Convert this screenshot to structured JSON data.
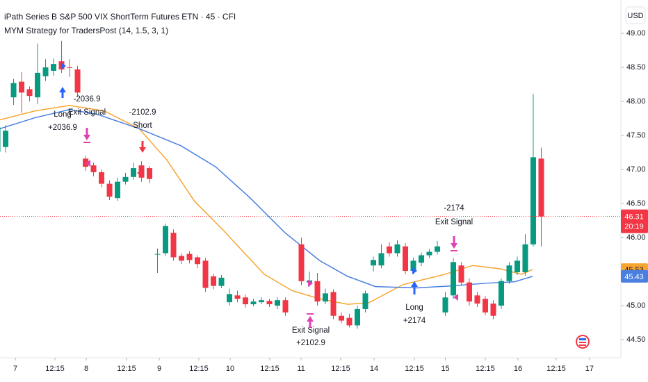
{
  "chart_data": {
    "type": "candlestick",
    "title": "iPath Series B S&P 500 VIX ShortTerm Futures ETN · 45 · CFI",
    "subtitle": "MYM Strategy for TradersPost (14, 1.5, 3, 1)",
    "currency": "USD",
    "countdown": "20:19",
    "up_color": "#089981",
    "down_color": "#f23645",
    "x": [
      -1,
      0,
      1,
      2,
      3,
      4,
      5,
      6,
      7,
      8,
      9,
      10,
      11,
      12,
      13,
      14,
      15,
      16,
      17,
      18,
      19,
      20,
      21,
      22,
      23,
      24,
      25,
      26,
      27,
      28,
      29,
      30,
      31,
      32,
      33,
      34,
      35,
      37,
      38,
      39,
      40,
      41,
      42,
      43,
      44,
      45,
      46,
      47,
      48,
      49,
      50,
      51,
      52,
      53,
      54,
      55,
      56,
      57,
      58,
      59,
      60,
      61,
      62,
      63,
      64,
      65,
      66,
      67
    ],
    "open": [
      47.26,
      47.33,
      48.06,
      48.29,
      48.18,
      48.06,
      48.37,
      48.45,
      48.59,
      48.5,
      48.47,
      47.16,
      47.06,
      46.96,
      46.79,
      46.58,
      46.82,
      46.89,
      47.06,
      47.02,
      45.75,
      45.77,
      46.07,
      45.73,
      45.76,
      45.71,
      45.66,
      45.43,
      45.29,
      45.05,
      45.15,
      45.12,
      45.02,
      45.05,
      45.07,
      45.0,
      45.08,
      45.9,
      45.34,
      45.36,
      45.06,
      45.2,
      44.85,
      44.82,
      44.71,
      44.95,
      45.59,
      45.59,
      45.87,
      45.77,
      45.87,
      45.51,
      45.63,
      45.74,
      45.79,
      44.9,
      45.15,
      45.59,
      45.34,
      45.15,
      45.1,
      45.03,
      45.0,
      45.36,
      45.49,
      45.49,
      45.9,
      47.16
    ],
    "high": [
      47.7,
      47.65,
      48.33,
      48.43,
      48.22,
      48.85,
      48.62,
      48.63,
      48.89,
      48.62,
      48.52,
      47.2,
      47.1,
      47.0,
      46.84,
      46.88,
      46.95,
      47.1,
      47.12,
      47.05,
      45.84,
      46.2,
      46.12,
      45.77,
      45.8,
      45.74,
      45.7,
      45.47,
      45.45,
      45.25,
      45.22,
      45.16,
      45.1,
      45.12,
      45.1,
      45.12,
      45.12,
      46.0,
      45.5,
      45.48,
      45.25,
      45.24,
      44.9,
      44.88,
      45.0,
      45.22,
      45.72,
      45.9,
      45.93,
      45.96,
      45.92,
      45.7,
      45.78,
      45.83,
      45.95,
      45.2,
      45.7,
      45.64,
      45.4,
      45.2,
      45.14,
      45.08,
      45.4,
      45.64,
      45.72,
      46.05,
      48.11,
      47.32
    ],
    "low": [
      47.2,
      47.25,
      47.95,
      47.83,
      48.0,
      47.96,
      48.3,
      48.38,
      48.42,
      48.36,
      48.07,
      46.98,
      46.9,
      46.74,
      46.55,
      46.54,
      46.78,
      46.85,
      46.82,
      46.8,
      45.48,
      45.73,
      45.66,
      45.61,
      45.62,
      45.55,
      45.2,
      45.24,
      45.26,
      45.0,
      45.05,
      44.97,
      44.99,
      45.02,
      44.98,
      44.95,
      44.85,
      45.3,
      45.28,
      45.0,
      45.02,
      44.8,
      44.74,
      44.68,
      44.66,
      44.9,
      45.5,
      45.55,
      45.72,
      45.72,
      45.46,
      45.46,
      45.58,
      45.7,
      45.75,
      44.85,
      45.1,
      45.3,
      45.0,
      44.98,
      44.86,
      44.8,
      44.95,
      45.32,
      45.45,
      45.44,
      45.87,
      45.87
    ],
    "close": [
      47.62,
      47.57,
      48.27,
      48.13,
      48.08,
      48.42,
      48.5,
      48.55,
      48.47,
      48.49,
      48.13,
      47.04,
      46.96,
      46.79,
      46.6,
      46.82,
      46.89,
      47.02,
      46.88,
      46.86,
      45.76,
      46.17,
      45.71,
      45.66,
      45.67,
      45.61,
      45.26,
      45.29,
      45.41,
      45.17,
      45.1,
      45.02,
      45.06,
      45.08,
      45.02,
      45.08,
      44.9,
      45.36,
      45.37,
      45.06,
      45.18,
      44.85,
      44.78,
      44.71,
      44.95,
      45.18,
      45.67,
      45.77,
      45.77,
      45.9,
      45.51,
      45.66,
      45.74,
      45.79,
      45.87,
      45.12,
      45.64,
      45.34,
      45.06,
      45.03,
      44.9,
      44.85,
      45.36,
      45.59,
      45.66,
      45.9,
      47.18,
      46.31
    ],
    "series": [
      {
        "color": "#f7a531",
        "x": [
          -0.7,
          3.65,
          8,
          12.35,
          16.7,
          20.17,
          23.65,
          27.13,
          32.35,
          35.83,
          39.3,
          42.78,
          45.39,
          49.74,
          54.96,
          58.43,
          61.91,
          64.52,
          65.91
        ],
        "values": [
          47.73,
          47.86,
          47.94,
          47.86,
          47.6,
          47.14,
          46.53,
          46.12,
          45.46,
          45.22,
          45.1,
          45.02,
          45.04,
          45.31,
          45.46,
          45.59,
          45.54,
          45.46,
          45.53
        ]
      },
      {
        "color": "#4a7fe0",
        "x": [
          -0.7,
          3.65,
          8,
          11.48,
          16.7,
          21.91,
          26.26,
          30.61,
          34.96,
          39.3,
          42.78,
          46.26,
          51.48,
          55.83,
          60.17,
          63.65,
          65.91
        ],
        "values": [
          47.6,
          47.76,
          47.88,
          47.81,
          47.6,
          47.35,
          47.04,
          46.58,
          46.07,
          45.66,
          45.43,
          45.28,
          45.26,
          45.29,
          45.33,
          45.35,
          45.43
        ]
      }
    ],
    "annotations": [
      [
        "Long",
        "+2036.9"
      ],
      [
        "-2036.9",
        "Exit Signal"
      ],
      [
        "-2102.9",
        "Short"
      ],
      [
        "Exit Signal",
        "+2102.9"
      ],
      [
        "Long",
        "+2174"
      ],
      [
        "-2174",
        "Exit Signal"
      ]
    ],
    "xlim": [
      -0.7,
      76.96
    ],
    "xticks": [
      {
        "value": 1.22,
        "label": "7"
      },
      {
        "value": 6.17,
        "label": "12:15"
      },
      {
        "value": 10.09,
        "label": "8"
      },
      {
        "value": 15.13,
        "label": "12:15"
      },
      {
        "value": 19.22,
        "label": "9"
      },
      {
        "value": 24.17,
        "label": "12:15"
      },
      {
        "value": 28.09,
        "label": "10"
      },
      {
        "value": 33.04,
        "label": "12:15"
      },
      {
        "value": 36.96,
        "label": "11"
      },
      {
        "value": 41.91,
        "label": "12:15"
      },
      {
        "value": 46.09,
        "label": "14"
      },
      {
        "value": 51.13,
        "label": "12:15"
      },
      {
        "value": 55.0,
        "label": "15"
      },
      {
        "value": 60.0,
        "label": "12:15"
      },
      {
        "value": 64.09,
        "label": "16"
      },
      {
        "value": 68.87,
        "label": "12:15"
      },
      {
        "value": 73.04,
        "label": "17"
      }
    ],
    "ylim": [
      44.235,
      49.49
    ],
    "yticks": [
      {
        "value": 44.5,
        "label": "44.50"
      },
      {
        "value": 45,
        "label": "45.00"
      },
      {
        "value": 45.5,
        "label": "45.50"
      },
      {
        "value": 46,
        "label": "46.00"
      },
      {
        "value": 46.5,
        "label": "46.50"
      },
      {
        "value": 47,
        "label": "47.00"
      },
      {
        "value": 47.5,
        "label": "47.50"
      },
      {
        "value": 48,
        "label": "48.00"
      },
      {
        "value": 48.5,
        "label": "48.50"
      },
      {
        "value": 49,
        "label": "49.00"
      }
    ]
  }
}
